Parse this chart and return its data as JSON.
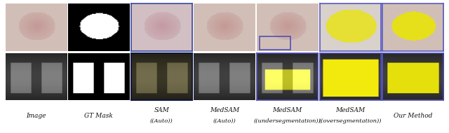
{
  "figsize": [
    6.4,
    1.9
  ],
  "dpi": 100,
  "background_color": "#ffffff",
  "n_cols": 7,
  "n_rows": 2,
  "col_labels": [
    "Image",
    "GT Mask",
    "SAM\n(Auto)",
    "MedSAM\n(Auto)",
    "MedSAM\n(undersegmentation)",
    "MedSAM\n(oversegmentation)",
    "Our Method"
  ],
  "label_fontsize": 6.5,
  "label_color": "#111111",
  "grid_color": "#cccccc",
  "row1_colors": [
    [
      "#d4a0a0",
      "#c89090"
    ],
    [
      "#000000",
      "#ffffff"
    ],
    [
      "#c8b8c8",
      "#a89898"
    ],
    [
      "#d0b0b0",
      "#b89898"
    ],
    [
      "#d0b8b8",
      "#8878a8"
    ],
    [
      "#e8e000",
      "#d0c800"
    ],
    [
      "#d0b8b8",
      "#7878a8"
    ]
  ],
  "row2_colors": [
    [
      "#404040",
      "#202020"
    ],
    [
      "#000000",
      "#ffffff"
    ],
    [
      "#806020",
      "#204060"
    ],
    [
      "#303030",
      "#202020"
    ],
    [
      "#101010",
      "#e8e000"
    ],
    [
      "#d0c800",
      "#c8b800"
    ],
    [
      "#101010",
      "#e8e000"
    ]
  ],
  "image_placeholder_alpha": 0.85,
  "border_colors": {
    "row1_col2_sam": "#204080",
    "row1_col4_medsam_under": "#4040a0",
    "row1_col5_medsam_over": "#4848b0",
    "row1_col6_our": "#5050b8",
    "row2_col2_sam": "#182060",
    "row2_col4_medsam_under": "#3838a0",
    "row2_col5_medsam_over": "#3838a0",
    "row2_col6_our": "#3838a0"
  }
}
